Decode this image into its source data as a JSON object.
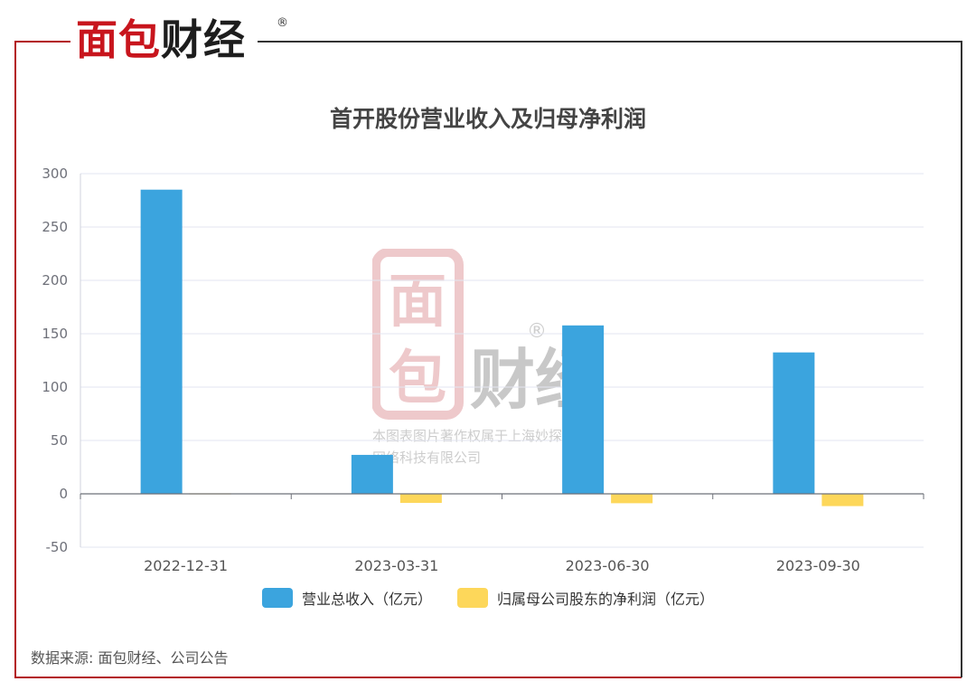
{
  "brand": {
    "logo_red": "面包",
    "logo_dark": "财经",
    "registered": "®"
  },
  "chart_data": {
    "type": "bar",
    "title": "首开股份营业收入及归母净利润",
    "categories": [
      "2022-12-31",
      "2023-03-31",
      "2023-06-30",
      "2023-09-30"
    ],
    "series": [
      {
        "name": "营业总收入（亿元）",
        "color": "#3ba4de",
        "values": [
          285.0,
          36.5,
          157.8,
          132.5
        ]
      },
      {
        "name": "归属母公司股东的净利润（亿元）",
        "color": "#fdd75a",
        "values": [
          0.5,
          -8.5,
          -8.8,
          -11.5
        ]
      }
    ],
    "yticks": [
      300,
      250,
      200,
      150,
      100,
      50,
      0,
      -50
    ],
    "ylim": [
      -50,
      300
    ],
    "xlabel": "",
    "ylabel": "",
    "legend_position": "bottom",
    "grid": true
  },
  "watermark": {
    "line1": "本图表图片著作权属于上海妙探",
    "line2": "网络科技有限公司",
    "logo_top": "面",
    "logo_mid": "包",
    "logo_right": "财经",
    "registered": "®"
  },
  "footer": {
    "source": "数据来源: 面包财经、公司公告"
  },
  "colors": {
    "frame_red": "#b3141b",
    "frame_dark": "#333333",
    "grid": "#e3e6f0",
    "axis": "#6e7079"
  }
}
